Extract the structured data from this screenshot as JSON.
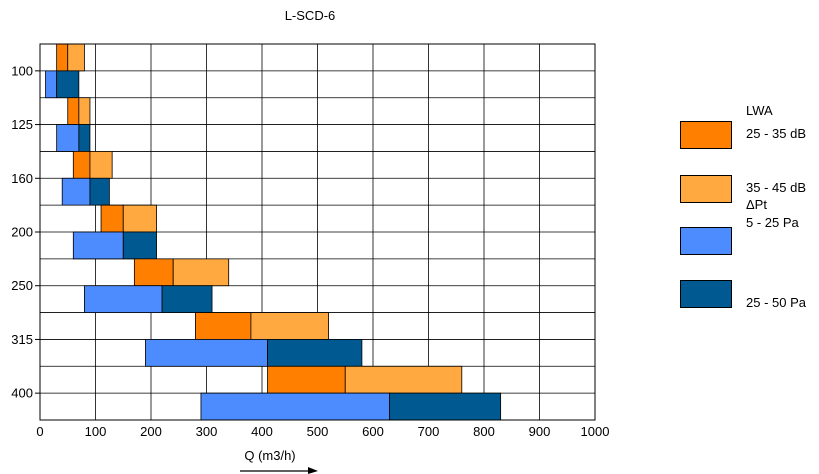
{
  "chart_data": {
    "type": "bar",
    "title": "L-SCD-6",
    "xlabel": "Q (m3/h)",
    "ylabel": "",
    "xlim": [
      0,
      1000
    ],
    "xticks": [
      0,
      100,
      200,
      300,
      400,
      500,
      600,
      700,
      800,
      900,
      1000
    ],
    "categories": [
      "100",
      "125",
      "160",
      "200",
      "250",
      "315",
      "400"
    ],
    "grid": true,
    "rows": [
      {
        "size": "100",
        "lwa": [
          {
            "from": 30,
            "to": 50,
            "range": "25 - 35 dB"
          },
          {
            "from": 50,
            "to": 80,
            "range": "35 - 45 dB"
          }
        ],
        "pt": [
          {
            "from": 10,
            "to": 30,
            "range": "5 - 25 Pa"
          },
          {
            "from": 30,
            "to": 70,
            "range": "25 - 50 Pa"
          }
        ]
      },
      {
        "size": "125",
        "lwa": [
          {
            "from": 50,
            "to": 70,
            "range": "25 - 35 dB"
          },
          {
            "from": 70,
            "to": 90,
            "range": "35 - 45 dB"
          }
        ],
        "pt": [
          {
            "from": 30,
            "to": 70,
            "range": "5 - 25 Pa"
          },
          {
            "from": 70,
            "to": 90,
            "range": "25 - 50 Pa"
          }
        ]
      },
      {
        "size": "160",
        "lwa": [
          {
            "from": 60,
            "to": 90,
            "range": "25 - 35 dB"
          },
          {
            "from": 90,
            "to": 130,
            "range": "35 - 45 dB"
          }
        ],
        "pt": [
          {
            "from": 40,
            "to": 90,
            "range": "5 - 25 Pa"
          },
          {
            "from": 90,
            "to": 125,
            "range": "25 - 50 Pa"
          }
        ]
      },
      {
        "size": "200",
        "lwa": [
          {
            "from": 110,
            "to": 150,
            "range": "25 - 35 dB"
          },
          {
            "from": 150,
            "to": 210,
            "range": "35 - 45 dB"
          }
        ],
        "pt": [
          {
            "from": 60,
            "to": 150,
            "range": "5 - 25 Pa"
          },
          {
            "from": 150,
            "to": 210,
            "range": "25 - 50 Pa"
          }
        ]
      },
      {
        "size": "250",
        "lwa": [
          {
            "from": 170,
            "to": 240,
            "range": "25 - 35 dB"
          },
          {
            "from": 240,
            "to": 340,
            "range": "35 - 45 dB"
          }
        ],
        "pt": [
          {
            "from": 80,
            "to": 220,
            "range": "5 - 25 Pa"
          },
          {
            "from": 220,
            "to": 310,
            "range": "25 - 50 Pa"
          }
        ]
      },
      {
        "size": "315",
        "lwa": [
          {
            "from": 280,
            "to": 380,
            "range": "25 - 35 dB"
          },
          {
            "from": 380,
            "to": 520,
            "range": "35 - 45 dB"
          }
        ],
        "pt": [
          {
            "from": 190,
            "to": 410,
            "range": "5 - 25 Pa"
          },
          {
            "from": 410,
            "to": 580,
            "range": "25 - 50 Pa"
          }
        ]
      },
      {
        "size": "400",
        "lwa": [
          {
            "from": 410,
            "to": 550,
            "range": "25 - 35 dB"
          },
          {
            "from": 550,
            "to": 760,
            "range": "35 - 45 dB"
          }
        ],
        "pt": [
          {
            "from": 290,
            "to": 630,
            "range": "5 - 25 Pa"
          },
          {
            "from": 630,
            "to": 830,
            "range": "25 - 50 Pa"
          }
        ]
      }
    ],
    "series": [
      {
        "name": "25 - 35 dB",
        "group": "LWA",
        "color": "#FF8000"
      },
      {
        "name": "35 - 45 dB",
        "group": "LWA",
        "color": "#FFA940"
      },
      {
        "name": "5 - 25 Pa",
        "group": "ΔPt",
        "color": "#4D8CFF"
      },
      {
        "name": "25 - 50 Pa",
        "group": "ΔPt",
        "color": "#005A91"
      }
    ],
    "legend": {
      "position": "right",
      "groups": [
        {
          "heading": "LWA",
          "items": [
            "25 - 35 dB",
            "35 - 45 dB"
          ]
        },
        {
          "heading": "ΔPt",
          "items": [
            "5 - 25 Pa",
            "25 - 50 Pa"
          ]
        }
      ]
    }
  }
}
